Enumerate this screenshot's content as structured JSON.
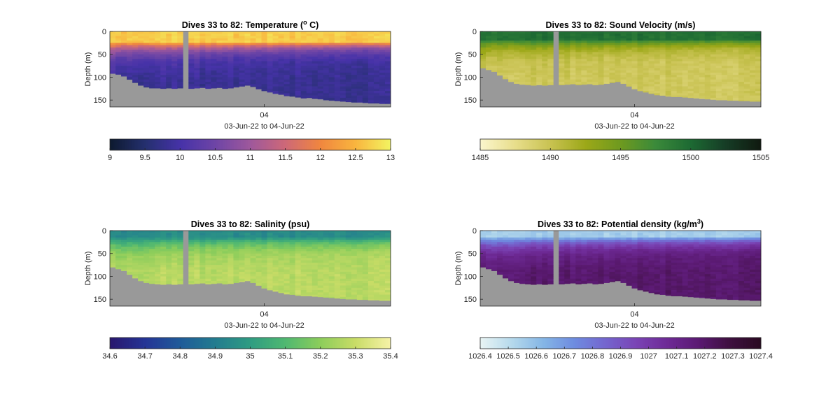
{
  "figure": {
    "xtick_label": "04",
    "xlabel": "03-Jun-22 to 04-Jun-22",
    "ylabel": "Depth (m)",
    "depth_ticks": [
      0,
      50,
      100,
      150
    ],
    "ylim": [
      165,
      0
    ],
    "dive_first": 33,
    "dive_last": 82,
    "gap_dive": 46,
    "no_data_color": "#999999"
  },
  "chart_data": [
    {
      "type": "heatmap",
      "title_prefix": "Dives 33 to 82: Temperature (",
      "title_sup": "o",
      "title_suffix": " C)",
      "variable": "Temperature",
      "clim": [
        9,
        13
      ],
      "colorbar_ticks": [
        "9",
        "9.5",
        "10",
        "10.5",
        "11",
        "11.5",
        "12",
        "12.5",
        "13"
      ],
      "colormap": [
        "#0d1a30",
        "#25306f",
        "#4632a8",
        "#6e45a6",
        "#9e589c",
        "#cd6878",
        "#f0863f",
        "#f9b43e",
        "#f3f360"
      ],
      "profile": {
        "surface": 12.7,
        "deep": 9.8,
        "mix_depth": 20,
        "decay": 0.045
      },
      "max_depth_by_dive": [
        92,
        94,
        98,
        105,
        112,
        118,
        122,
        124,
        124,
        125,
        124,
        125,
        124,
        0,
        125,
        124,
        123,
        125,
        124,
        123,
        125,
        124,
        122,
        120,
        118,
        121,
        126,
        130,
        133,
        136,
        138,
        141,
        142,
        144,
        146,
        145,
        147,
        148,
        150,
        151,
        152,
        153,
        154,
        155,
        155,
        156,
        157,
        157,
        158,
        158
      ]
    },
    {
      "type": "heatmap",
      "title_prefix": "Dives 33 to 82: Sound Velocity (m/s)",
      "title_sup": "",
      "title_suffix": "",
      "variable": "Sound Velocity",
      "clim": [
        1485,
        1505
      ],
      "colorbar_ticks": [
        "1485",
        "1490",
        "1495",
        "1500",
        "1505"
      ],
      "colormap": [
        "#fbf6cc",
        "#e7dd8a",
        "#c8c251",
        "#9ca818",
        "#6e9a1f",
        "#3b8a3a",
        "#1d6a33",
        "#163d26",
        "#101a10"
      ],
      "profile": {
        "surface": 1499.5,
        "deep": 1489.5,
        "mix_depth": 15,
        "decay": 0.05
      },
      "max_depth_by_dive": [
        80,
        84,
        88,
        96,
        104,
        110,
        114,
        116,
        117,
        118,
        117,
        118,
        117,
        0,
        117,
        116,
        115,
        117,
        116,
        115,
        117,
        116,
        114,
        112,
        110,
        114,
        120,
        126,
        130,
        133,
        136,
        139,
        140,
        142,
        143,
        143,
        144,
        145,
        146,
        147,
        148,
        149,
        150,
        150,
        151,
        151,
        152,
        152,
        153,
        153
      ]
    },
    {
      "type": "heatmap",
      "title_prefix": "Dives 33 to 82: Salinity (psu)",
      "title_sup": "",
      "title_suffix": "",
      "variable": "Salinity",
      "clim": [
        34.6,
        35.4
      ],
      "colorbar_ticks": [
        "34.6",
        "34.7",
        "34.8",
        "34.9",
        "35",
        "35.1",
        "35.2",
        "35.3",
        "35.4"
      ],
      "colormap": [
        "#29186e",
        "#253596",
        "#1f5b99",
        "#237c8f",
        "#2f9c82",
        "#4fb871",
        "#8ccd5b",
        "#c8dc66",
        "#f6f2a6"
      ],
      "profile": {
        "surface": 34.95,
        "deep": 35.28,
        "mix_depth": 12,
        "decay": 0.04
      },
      "max_depth_by_dive": [
        80,
        84,
        88,
        96,
        104,
        110,
        114,
        116,
        117,
        118,
        117,
        118,
        117,
        0,
        117,
        116,
        115,
        117,
        116,
        115,
        117,
        116,
        114,
        112,
        110,
        114,
        120,
        126,
        130,
        133,
        136,
        139,
        140,
        142,
        143,
        143,
        144,
        145,
        146,
        147,
        148,
        149,
        150,
        150,
        151,
        151,
        152,
        152,
        153,
        153
      ]
    },
    {
      "type": "heatmap",
      "title_prefix": "Dives 33 to 82: Potential density (kg/m",
      "title_sup": "3",
      "title_suffix": ")",
      "variable": "Potential density",
      "clim": [
        1026.4,
        1027.4
      ],
      "colorbar_ticks": [
        "1026.4",
        "1026.5",
        "1026.6",
        "1026.7",
        "1026.8",
        "1026.9",
        "1027",
        "1027.1",
        "1027.2",
        "1027.3",
        "1027.4"
      ],
      "colormap": [
        "#e8f4f4",
        "#b5d9ec",
        "#85b6e6",
        "#6e8ce0",
        "#7466cf",
        "#7a44b5",
        "#6e2a96",
        "#5b1a73",
        "#3f1040",
        "#2a0a22"
      ],
      "profile": {
        "surface": 1026.55,
        "deep": 1027.2,
        "mix_depth": 10,
        "decay": 0.04
      },
      "max_depth_by_dive": [
        80,
        84,
        88,
        96,
        104,
        110,
        114,
        116,
        117,
        118,
        117,
        118,
        117,
        0,
        117,
        116,
        115,
        117,
        116,
        115,
        117,
        116,
        114,
        112,
        110,
        114,
        120,
        126,
        130,
        133,
        136,
        139,
        140,
        142,
        143,
        143,
        144,
        145,
        146,
        147,
        148,
        149,
        150,
        150,
        151,
        151,
        152,
        152,
        153,
        153
      ]
    }
  ]
}
